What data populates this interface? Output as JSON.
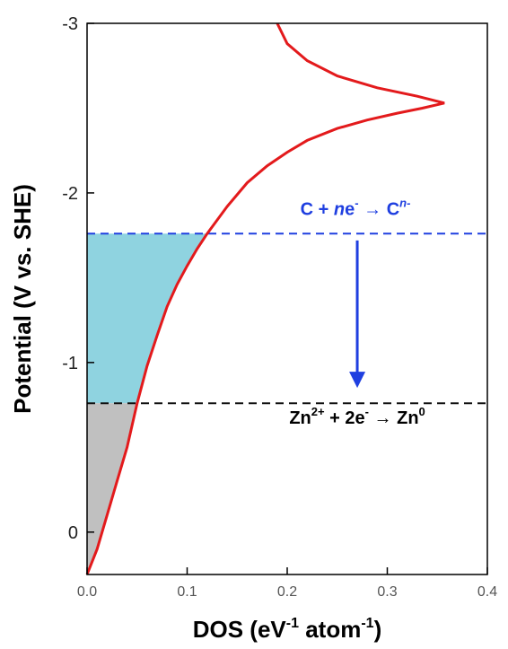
{
  "chart_data": {
    "type": "line",
    "title": "",
    "xlabel": {
      "base": "DOS (eV",
      "sup1": "-1",
      "mid": " atom",
      "sup2": "-1",
      "end": ")"
    },
    "ylabel": "Potential (V vs. SHE)",
    "xlim": [
      0.0,
      0.4
    ],
    "ylim": [
      0.25,
      -3.0
    ],
    "x_ticks": [
      0.0,
      0.1,
      0.2,
      0.3,
      0.4
    ],
    "x_tick_labels": [
      "0.0",
      "0.1",
      "0.2",
      "0.3",
      "0.4"
    ],
    "y_ticks": [
      0,
      -1,
      -2,
      -3
    ],
    "y_tick_labels": [
      "0",
      "-1",
      "-2",
      "-3"
    ],
    "grid": false,
    "legend": "none",
    "series": [
      {
        "color": "#e31a1c",
        "points": [
          [
            0.0,
            0.25
          ],
          [
            0.01,
            0.1
          ],
          [
            0.02,
            -0.1
          ],
          [
            0.03,
            -0.3
          ],
          [
            0.04,
            -0.5
          ],
          [
            0.05,
            -0.76
          ],
          [
            0.06,
            -0.98
          ],
          [
            0.07,
            -1.16
          ],
          [
            0.08,
            -1.33
          ],
          [
            0.09,
            -1.46
          ],
          [
            0.1,
            -1.57
          ],
          [
            0.11,
            -1.67
          ],
          [
            0.12,
            -1.76
          ],
          [
            0.14,
            -1.92
          ],
          [
            0.16,
            -2.06
          ],
          [
            0.18,
            -2.16
          ],
          [
            0.2,
            -2.24
          ],
          [
            0.22,
            -2.31
          ],
          [
            0.25,
            -2.38
          ],
          [
            0.28,
            -2.43
          ],
          [
            0.31,
            -2.47
          ],
          [
            0.335,
            -2.5
          ],
          [
            0.357,
            -2.53
          ],
          [
            0.33,
            -2.57
          ],
          [
            0.29,
            -2.62
          ],
          [
            0.25,
            -2.69
          ],
          [
            0.22,
            -2.78
          ],
          [
            0.2,
            -2.88
          ],
          [
            0.19,
            -3.0
          ]
        ]
      }
    ],
    "filled_regions": [
      {
        "color": "#8fd3e0",
        "y_from": -0.76,
        "y_to": -1.76
      },
      {
        "color": "#c0c0c0",
        "y_from": 0.25,
        "y_to": -0.76
      }
    ],
    "reference_lines": [
      {
        "y": -1.76,
        "color": "#1f3fe0"
      },
      {
        "y": -0.76,
        "color": "#111111"
      }
    ],
    "arrow": {
      "x": 0.27,
      "y_from": -1.72,
      "y_to": -0.85,
      "color": "#1f3fe0"
    },
    "annotations": {
      "carbon": {
        "pre": "C + ",
        "italic": "n",
        "mid": "e",
        "sup1": "-",
        "arrow": " → C",
        "sup2": "n-",
        "color": "#1f3fe0",
        "x": 0.27,
        "y": -1.87
      },
      "zinc": {
        "pre": "Zn",
        "sup1": "2+",
        "mid": " + 2e",
        "sup2": "-",
        "arrow": " → Zn",
        "sup3": "0",
        "color": "#000000",
        "x": 0.27,
        "y": -0.64
      }
    }
  }
}
